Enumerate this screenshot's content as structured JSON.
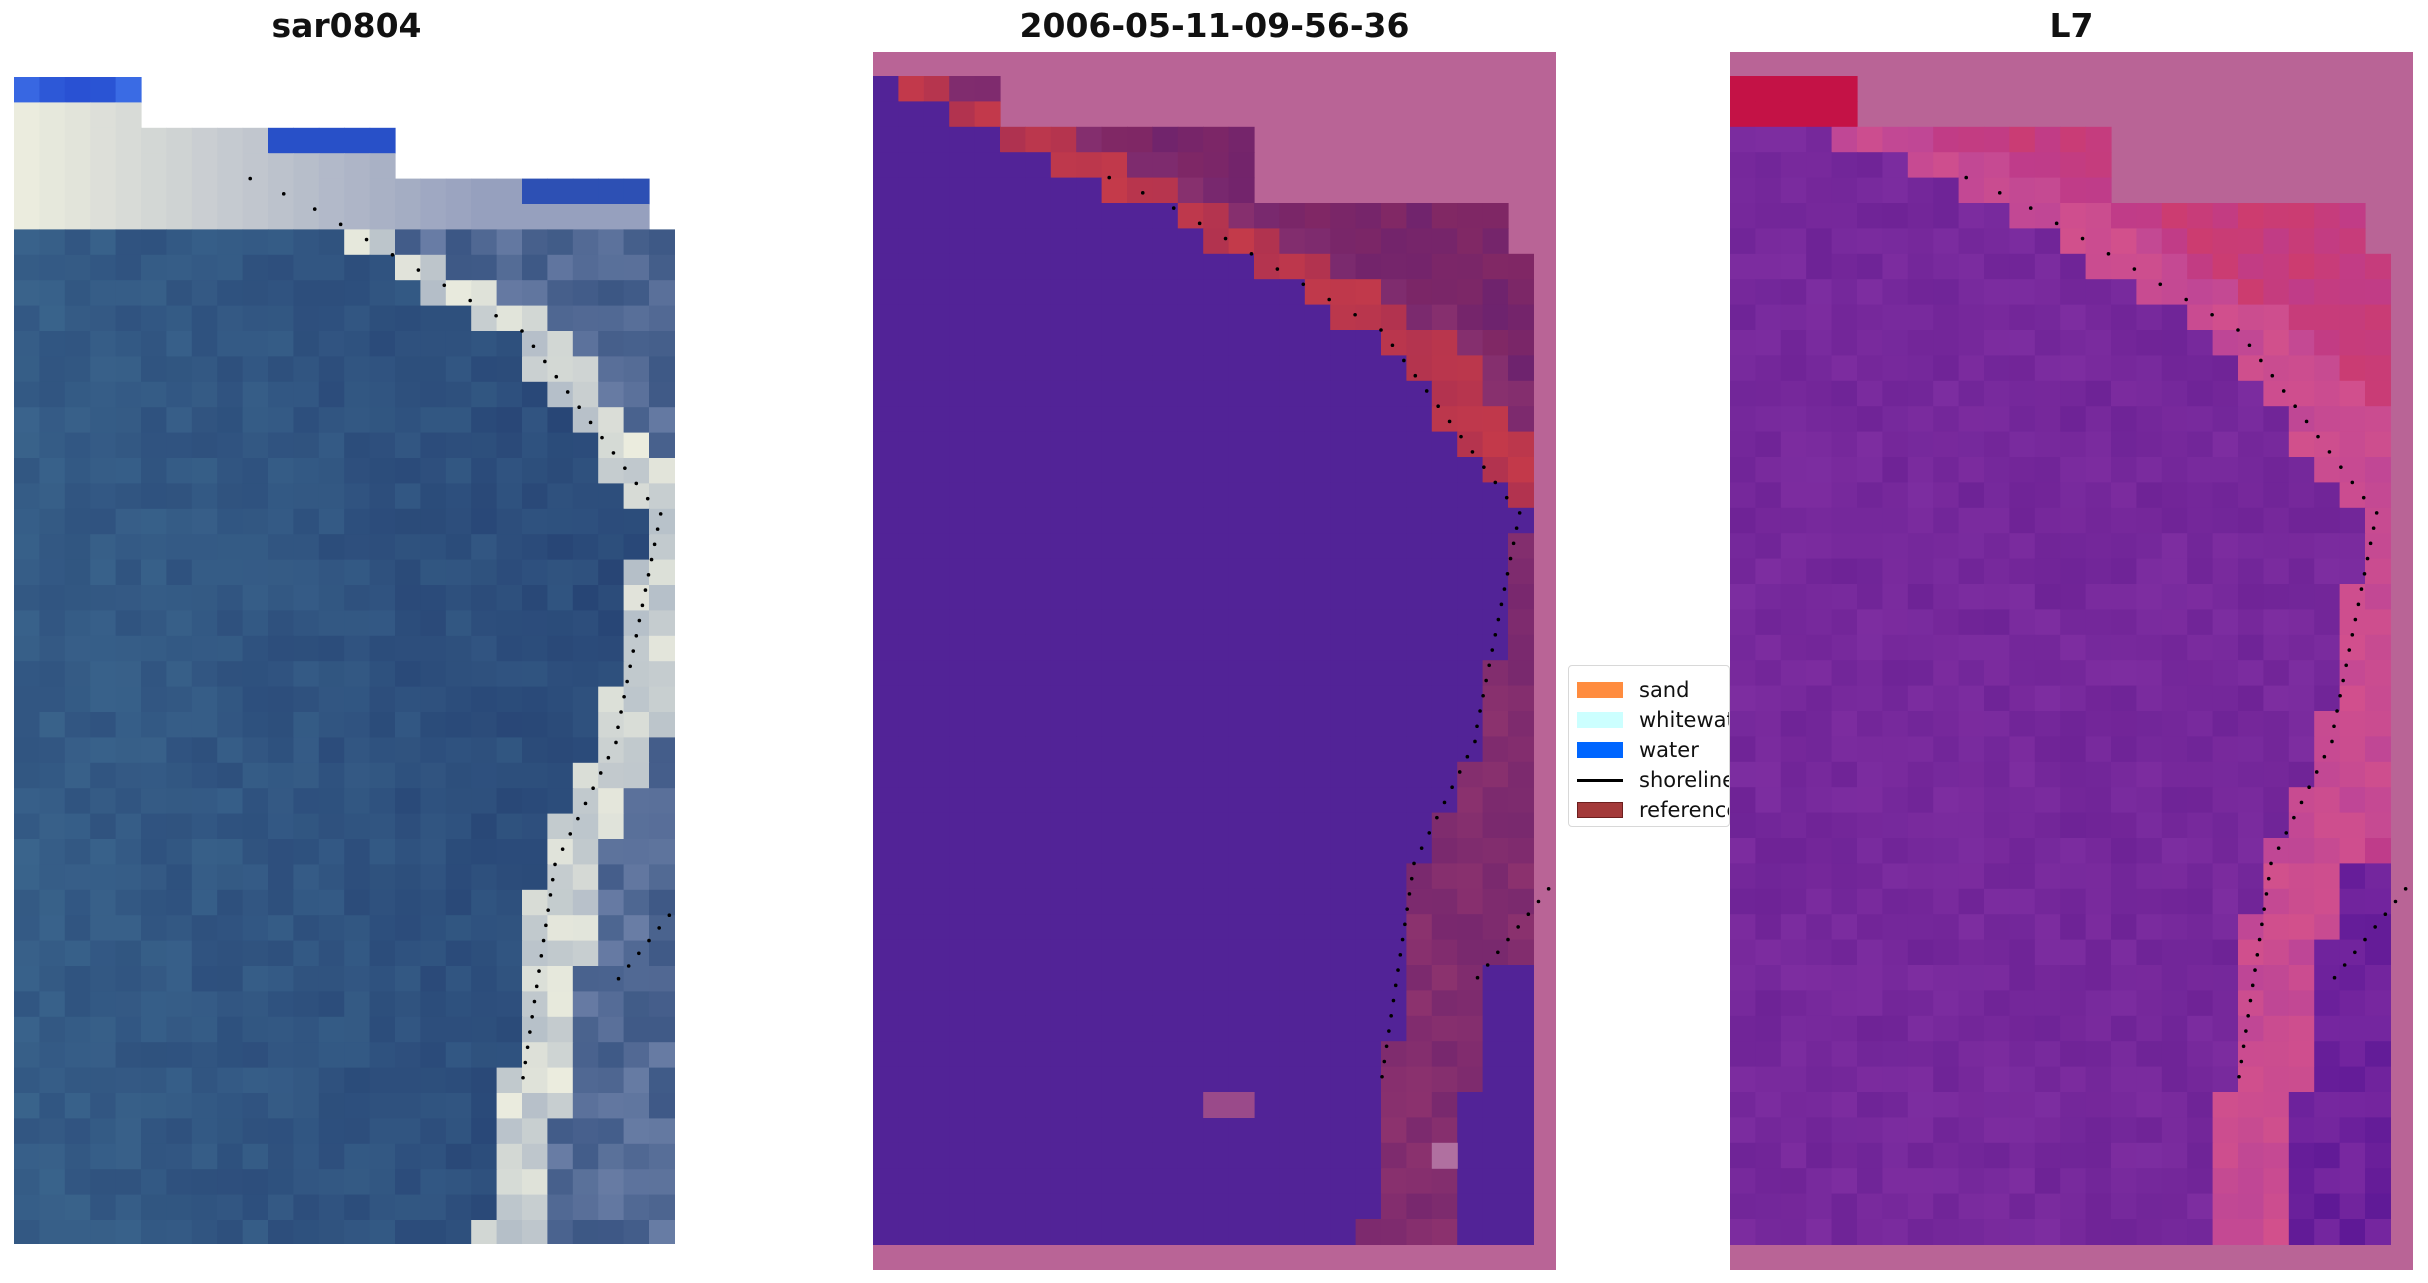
{
  "panels": [
    {
      "id": "rgb",
      "title": "sar0804"
    },
    {
      "id": "classified",
      "title": "2006-05-11-09-56-36"
    },
    {
      "id": "index",
      "title": "L7"
    }
  ],
  "legend": {
    "items": [
      {
        "label": "sand",
        "color": "#ff8c3f",
        "kind": "patch"
      },
      {
        "label": "whitewater",
        "color": "#ccffff",
        "kind": "patch"
      },
      {
        "label": "water",
        "color": "#0066ff",
        "kind": "patch"
      },
      {
        "label": "shoreline",
        "color": "#000000",
        "kind": "line"
      },
      {
        "label": "reference",
        "color": "#a33a3a",
        "kind": "patch"
      }
    ]
  },
  "colors": {
    "background_pink": "#b96496",
    "classified_water": "#522397",
    "classified_sand": "#c43a4a",
    "index_high": "#c4104a",
    "index_low": "#7a2ca8",
    "rgb_water": "#3a6a92",
    "rgb_whitewater": "#e8ece0"
  }
}
